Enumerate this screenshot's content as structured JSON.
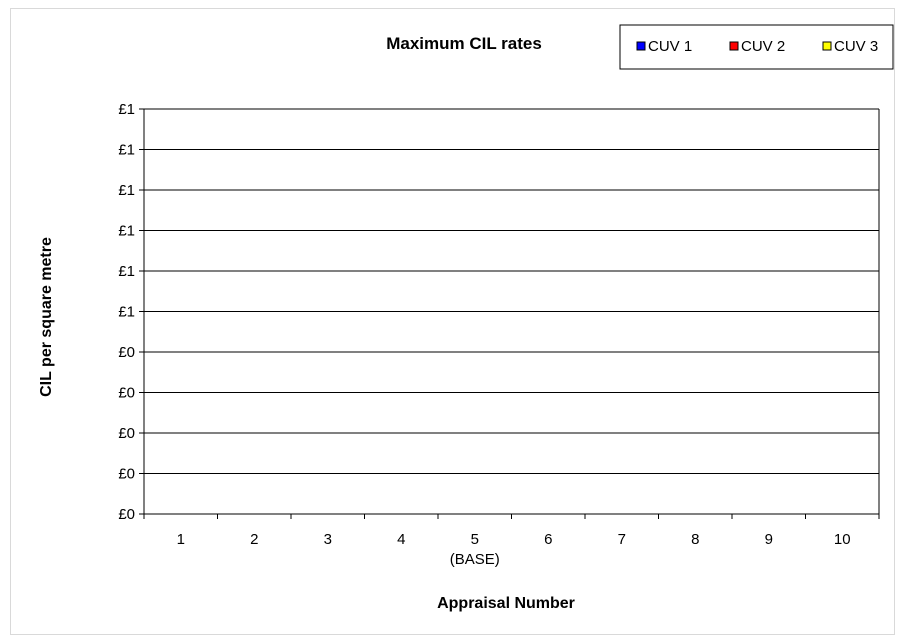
{
  "chart_data": {
    "type": "bar",
    "title": "Maximum  CIL rates",
    "xlabel": "Appraisal Number",
    "ylabel": "CIL per square metre",
    "categories": [
      "1",
      "2",
      "3",
      "4",
      "5",
      "6",
      "7",
      "8",
      "9",
      "10"
    ],
    "category_sublabels": [
      "",
      "",
      "",
      "",
      "(BASE)",
      "",
      "",
      "",
      "",
      ""
    ],
    "y_tick_labels": [
      "£0",
      "£0",
      "£0",
      "£0",
      "£0",
      "£1",
      "£1",
      "£1",
      "£1",
      "£1",
      "£1"
    ],
    "ylim": [
      0,
      1
    ],
    "grid": true,
    "legend_position": "top-right",
    "series": [
      {
        "name": "CUV 1",
        "color": "#0000ff",
        "values": [
          0,
          0,
          0,
          0,
          0,
          0,
          0,
          0,
          0,
          0
        ]
      },
      {
        "name": "CUV 2",
        "color": "#ff0000",
        "values": [
          0,
          0,
          0,
          0,
          0,
          0,
          0,
          0,
          0,
          0
        ]
      },
      {
        "name": "CUV 3",
        "color": "#ffff00",
        "values": [
          0,
          0,
          0,
          0,
          0,
          0,
          0,
          0,
          0,
          0
        ]
      }
    ]
  }
}
